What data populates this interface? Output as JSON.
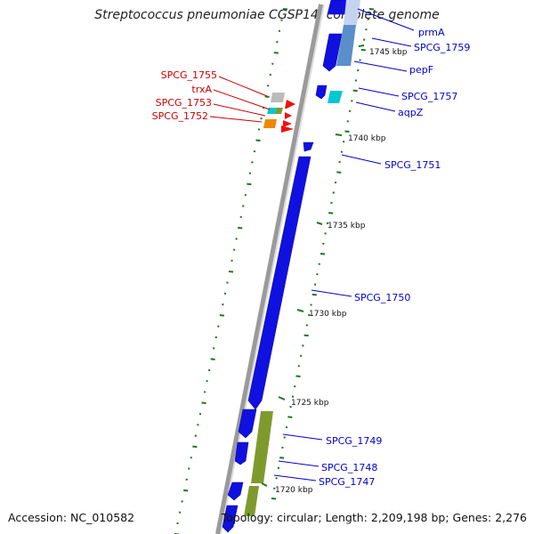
{
  "title": "Streptococcus pneumoniae CGSP14, complete genome",
  "footer": {
    "accession": "Accession: NC_010582",
    "topology": "Topology: circular; Length: 2,209,198 bp; Genes: 2,276"
  },
  "colors": {
    "backbone": "#888888",
    "gene_main": "#1010e0",
    "gene_red": "#ee1111",
    "tick": "#1b7a1b",
    "label_blue": "#0000cc",
    "label_red": "#cc0000",
    "cds_blue": "#5b8fc9",
    "cds_olive": "#7f9a2c",
    "cds_cyan": "#00c8d0",
    "cds_orange": "#ee8800",
    "cds_grey": "#bbbbbb"
  },
  "scale_labels": [
    "1745 kbp",
    "1740 kbp",
    "1735 kbp",
    "1730 kbp",
    "1725 kbp",
    "1720 kbp"
  ],
  "gene_labels_right": [
    "prmA",
    "SPCG_1759",
    "pepF",
    "SPCG_1757",
    "aqpZ",
    "SPCG_1751",
    "SPCG_1750",
    "SPCG_1749",
    "SPCG_1748",
    "SPCG_1747"
  ],
  "gene_labels_left": [
    "SPCG_1755",
    "trxA",
    "SPCG_1753",
    "SPCG_1752"
  ]
}
